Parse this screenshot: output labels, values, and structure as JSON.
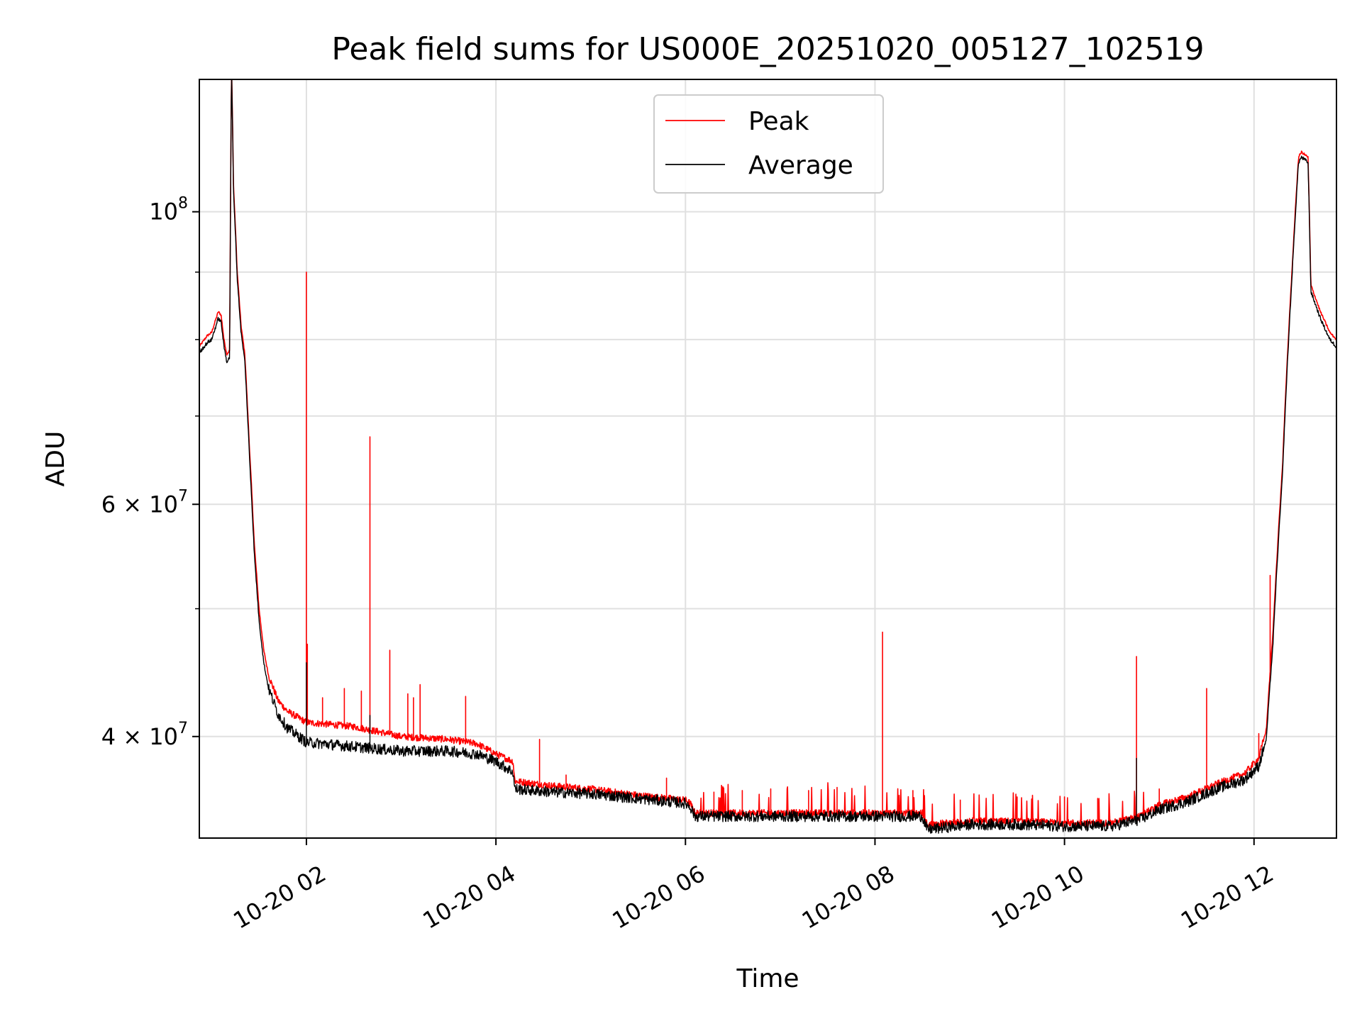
{
  "chart_data": {
    "type": "line",
    "title": "Peak field sums for US000E_20251020_005127_102519",
    "xlabel": "Time",
    "ylabel": "ADU",
    "yscale": "log",
    "xlim": [
      0.87,
      12.87
    ],
    "ylim": [
      33500000,
      126000000
    ],
    "grid": true,
    "legend_position": "top-center",
    "x_ticks": [
      {
        "value": 2,
        "label": "10-20 02"
      },
      {
        "value": 4,
        "label": "10-20 04"
      },
      {
        "value": 6,
        "label": "10-20 06"
      },
      {
        "value": 8,
        "label": "10-20 08"
      },
      {
        "value": 10,
        "label": "10-20 10"
      },
      {
        "value": 12,
        "label": "10-20 12"
      }
    ],
    "y_major_ticks": [
      {
        "value": 40000000,
        "base": "4 × 10",
        "exp": "7"
      },
      {
        "value": 60000000,
        "base": "6 × 10",
        "exp": "7"
      },
      {
        "value": 100000000,
        "base": "10",
        "exp": "8"
      }
    ],
    "y_minor_ticks": [
      50000000,
      70000000,
      80000000,
      90000000
    ],
    "x_unit": "hours since 2025-10-20 00:00",
    "series": [
      {
        "name": "Peak",
        "color": "#ff0000",
        "baseline": [
          [
            0.87,
            79.0
          ],
          [
            0.95,
            80.5
          ],
          [
            1.0,
            81.0
          ],
          [
            1.07,
            84.0
          ],
          [
            1.1,
            83.5
          ],
          [
            1.13,
            80.0
          ],
          [
            1.16,
            78.0
          ],
          [
            1.19,
            78.5
          ],
          [
            1.21,
            130.0
          ],
          [
            1.23,
            105.0
          ],
          [
            1.27,
            90.0
          ],
          [
            1.31,
            82.0
          ],
          [
            1.35,
            78.0
          ],
          [
            1.4,
            66.0
          ],
          [
            1.45,
            56.0
          ],
          [
            1.5,
            50.0
          ],
          [
            1.55,
            46.5
          ],
          [
            1.6,
            44.5
          ],
          [
            1.7,
            42.6
          ],
          [
            1.8,
            41.8
          ],
          [
            1.9,
            41.4
          ],
          [
            2.0,
            41.0
          ],
          [
            2.5,
            40.7
          ],
          [
            3.0,
            40.0
          ],
          [
            3.5,
            39.8
          ],
          [
            3.8,
            39.5
          ],
          [
            4.0,
            38.8
          ],
          [
            4.18,
            38.3
          ],
          [
            4.2,
            37.0
          ],
          [
            4.6,
            36.7
          ],
          [
            5.0,
            36.5
          ],
          [
            5.5,
            36.1
          ],
          [
            6.0,
            35.8
          ],
          [
            6.05,
            35.6
          ],
          [
            6.1,
            35.0
          ],
          [
            7.0,
            35.0
          ],
          [
            8.0,
            35.0
          ],
          [
            8.5,
            35.0
          ],
          [
            8.55,
            34.3
          ],
          [
            9.0,
            34.5
          ],
          [
            9.5,
            34.5
          ],
          [
            10.0,
            34.4
          ],
          [
            10.5,
            34.4
          ],
          [
            10.8,
            34.8
          ],
          [
            11.0,
            35.5
          ],
          [
            11.3,
            36.0
          ],
          [
            11.6,
            36.8
          ],
          [
            11.9,
            37.5
          ],
          [
            12.05,
            38.5
          ],
          [
            12.13,
            40.5
          ],
          [
            12.2,
            48.0
          ],
          [
            12.3,
            64.0
          ],
          [
            12.4,
            90.0
          ],
          [
            12.47,
            110.0
          ],
          [
            12.5,
            111.0
          ],
          [
            12.57,
            110.0
          ],
          [
            12.6,
            88.0
          ],
          [
            12.7,
            84.0
          ],
          [
            12.8,
            81.0
          ],
          [
            12.87,
            80.0
          ]
        ],
        "spikes": [
          [
            2.0,
            90.0
          ],
          [
            2.01,
            47.0
          ],
          [
            2.17,
            42.8
          ],
          [
            2.4,
            43.5
          ],
          [
            2.58,
            43.3
          ],
          [
            2.67,
            67.5
          ],
          [
            2.88,
            46.5
          ],
          [
            3.07,
            43.1
          ],
          [
            3.13,
            42.8
          ],
          [
            3.2,
            43.8
          ],
          [
            3.68,
            42.9
          ],
          [
            4.46,
            39.8
          ],
          [
            4.74,
            37.4
          ],
          [
            5.8,
            37.2
          ],
          [
            6.3,
            36.3
          ],
          [
            6.6,
            36.4
          ],
          [
            6.9,
            36.5
          ],
          [
            7.3,
            36.4
          ],
          [
            7.6,
            36.6
          ],
          [
            8.08,
            48.0
          ],
          [
            8.4,
            36.4
          ],
          [
            8.9,
            35.8
          ],
          [
            9.5,
            36.0
          ],
          [
            10.0,
            36.0
          ],
          [
            10.35,
            35.9
          ],
          [
            10.76,
            46.0
          ],
          [
            11.0,
            36.5
          ],
          [
            11.5,
            43.5
          ],
          [
            12.05,
            40.2
          ],
          [
            12.17,
            53.0
          ]
        ]
      },
      {
        "name": "Average",
        "color": "#000000",
        "baseline": [
          [
            0.87,
            78.2
          ],
          [
            0.95,
            79.5
          ],
          [
            1.0,
            80.0
          ],
          [
            1.07,
            83.0
          ],
          [
            1.1,
            82.5
          ],
          [
            1.13,
            79.0
          ],
          [
            1.16,
            77.0
          ],
          [
            1.19,
            77.5
          ],
          [
            1.21,
            129.0
          ],
          [
            1.23,
            104.0
          ],
          [
            1.27,
            89.0
          ],
          [
            1.31,
            81.0
          ],
          [
            1.35,
            77.0
          ],
          [
            1.4,
            65.0
          ],
          [
            1.45,
            55.0
          ],
          [
            1.5,
            49.0
          ],
          [
            1.55,
            45.5
          ],
          [
            1.6,
            43.5
          ],
          [
            1.7,
            41.6
          ],
          [
            1.8,
            40.6
          ],
          [
            1.9,
            40.1
          ],
          [
            2.0,
            39.6
          ],
          [
            2.5,
            39.3
          ],
          [
            3.0,
            39.0
          ],
          [
            3.5,
            39.0
          ],
          [
            3.8,
            38.8
          ],
          [
            4.0,
            38.3
          ],
          [
            4.18,
            37.6
          ],
          [
            4.2,
            36.5
          ],
          [
            4.6,
            36.3
          ],
          [
            5.0,
            36.2
          ],
          [
            5.5,
            35.9
          ],
          [
            6.0,
            35.6
          ],
          [
            6.05,
            35.4
          ],
          [
            6.1,
            34.8
          ],
          [
            7.0,
            34.8
          ],
          [
            8.0,
            34.8
          ],
          [
            8.5,
            34.8
          ],
          [
            8.55,
            34.0
          ],
          [
            9.0,
            34.3
          ],
          [
            9.5,
            34.3
          ],
          [
            10.0,
            34.2
          ],
          [
            10.5,
            34.2
          ],
          [
            10.8,
            34.6
          ],
          [
            11.0,
            35.2
          ],
          [
            11.3,
            35.7
          ],
          [
            11.6,
            36.5
          ],
          [
            11.9,
            37.1
          ],
          [
            12.05,
            38.0
          ],
          [
            12.13,
            39.8
          ],
          [
            12.2,
            47.0
          ],
          [
            12.3,
            63.0
          ],
          [
            12.4,
            89.0
          ],
          [
            12.47,
            109.0
          ],
          [
            12.5,
            110.0
          ],
          [
            12.57,
            109.0
          ],
          [
            12.6,
            87.0
          ],
          [
            12.7,
            83.0
          ],
          [
            12.8,
            80.0
          ],
          [
            12.87,
            79.0
          ]
        ],
        "spikes": [
          [
            2.0,
            45.5
          ],
          [
            2.67,
            41.5
          ],
          [
            10.76,
            38.5
          ]
        ]
      }
    ]
  }
}
